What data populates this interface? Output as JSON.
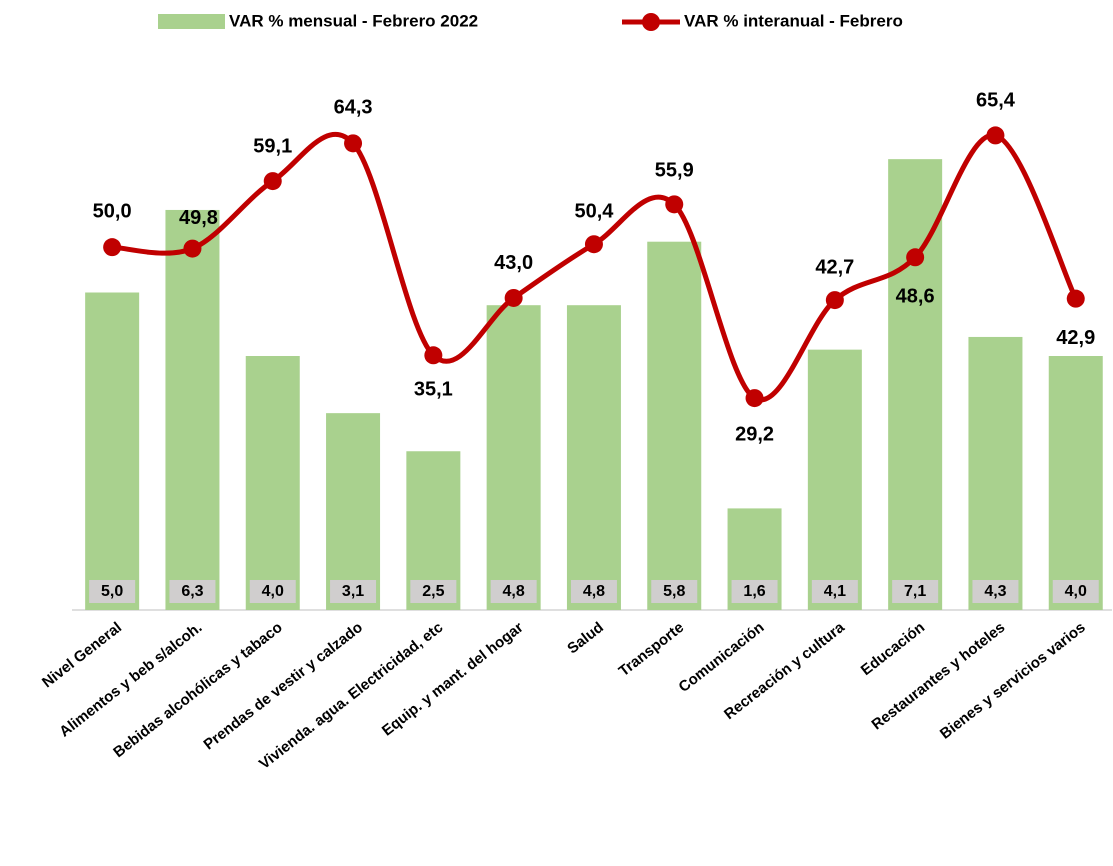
{
  "chart_data": {
    "type": "bar_line",
    "categories": [
      "Nivel General",
      "Alimentos y beb s/alcoh.",
      "Bebidas alcohólicas y tabaco",
      "Prendas de vestir y calzado",
      "Vivienda. agua. Electricidad, etc",
      "Equip. y mant. del hogar",
      "Salud",
      "Transporte",
      "Comunicación",
      "Recreación y cultura",
      "Educación",
      "Restaurantes y hoteles",
      "Bienes y servicios varios"
    ],
    "ylim": [
      0,
      8
    ],
    "y2lim": [
      0,
      70
    ],
    "series": [
      {
        "name": "VAR % mensual - Febrero 2022",
        "type": "bar",
        "color": "#a9d18e",
        "values": [
          5.0,
          6.3,
          4.0,
          3.1,
          2.5,
          4.8,
          4.8,
          5.8,
          1.6,
          4.1,
          7.1,
          4.3,
          4.0
        ],
        "value_labels": [
          "5,0",
          "6,3",
          "4,0",
          "3,1",
          "2,5",
          "4,8",
          "4,8",
          "5,8",
          "1,6",
          "4,1",
          "7,1",
          "4,3",
          "4,0"
        ]
      },
      {
        "name": "VAR % interanual - Febrero",
        "type": "line",
        "axis": "y2",
        "color": "#c00000",
        "values": [
          50.0,
          49.8,
          59.1,
          64.3,
          35.1,
          43.0,
          50.4,
          55.9,
          29.2,
          42.7,
          48.6,
          65.4,
          42.9
        ],
        "value_labels": [
          "50,0",
          "49,8",
          "59,1",
          "64,3",
          "35,1",
          "43,0",
          "50,4",
          "55,9",
          "29,2",
          "42,7",
          "48,6",
          "65,4",
          "42,9"
        ]
      }
    ]
  }
}
